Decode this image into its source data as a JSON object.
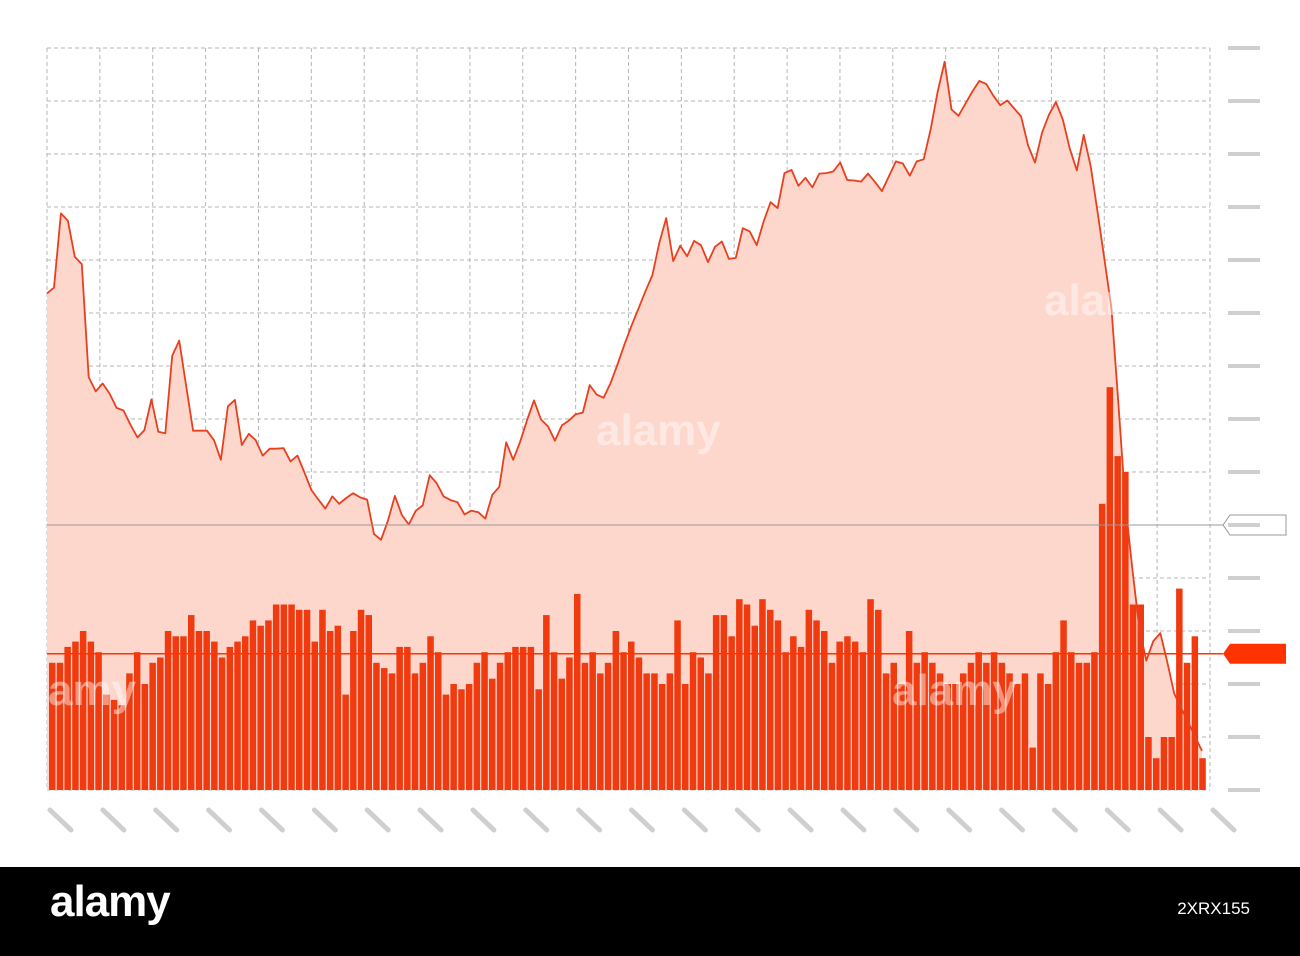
{
  "colors": {
    "line": "#e8401e",
    "fill": "#fdd6cc",
    "bars": "#f03a10",
    "grid": "#b5b5b5",
    "axis_ticks": "#cfcfcf",
    "marker_gray": "#999999",
    "marker_red": "#ff3300"
  },
  "chart_data": {
    "type": "area",
    "title": "",
    "xlabel": "",
    "ylabel": "",
    "grid": true,
    "y_ticks_count": 15,
    "x_ticks_count": 23,
    "ylim": [
      0,
      14
    ],
    "price": [
      9.37,
      9.48,
      10.88,
      10.74,
      10.06,
      9.92,
      7.79,
      7.52,
      7.67,
      7.48,
      7.21,
      7.16,
      6.89,
      6.65,
      6.79,
      7.37,
      6.76,
      6.73,
      8.19,
      8.48,
      7.62,
      6.78,
      6.78,
      6.78,
      6.6,
      6.23,
      7.24,
      7.36,
      6.51,
      6.72,
      6.6,
      6.31,
      6.44,
      6.44,
      6.45,
      6.2,
      6.31,
      5.99,
      5.66,
      5.48,
      5.31,
      5.54,
      5.4,
      5.51,
      5.6,
      5.52,
      5.48,
      4.83,
      4.72,
      5.08,
      5.55,
      5.19,
      5.01,
      5.27,
      5.37,
      5.94,
      5.79,
      5.54,
      5.47,
      5.43,
      5.2,
      5.27,
      5.24,
      5.12,
      5.57,
      5.72,
      6.56,
      6.23,
      6.57,
      6.98,
      7.35,
      6.99,
      6.86,
      6.59,
      6.88,
      6.97,
      7.09,
      7.12,
      7.64,
      7.46,
      7.4,
      7.68,
      8.03,
      8.41,
      8.76,
      9.08,
      9.41,
      9.71,
      10.32,
      10.79,
      9.98,
      10.27,
      10.07,
      10.36,
      10.28,
      9.96,
      10.25,
      10.35,
      10.02,
      10.04,
      10.6,
      10.54,
      10.28,
      10.73,
      11.09,
      10.98,
      11.64,
      11.7,
      11.4,
      11.55,
      11.37,
      11.63,
      11.64,
      11.67,
      11.84,
      11.51,
      11.5,
      11.48,
      11.63,
      11.47,
      11.3,
      11.58,
      11.86,
      11.82,
      11.59,
      11.86,
      11.9,
      12.46,
      13.17,
      13.74,
      12.84,
      12.72,
      12.95,
      13.18,
      13.38,
      13.32,
      13.1,
      12.92,
      13.01,
      12.86,
      12.71,
      12.16,
      11.84,
      12.4,
      12.74,
      12.98,
      12.65,
      12.1,
      11.69,
      12.36,
      11.77,
      10.9,
      9.99,
      9.08,
      7.26,
      5.37,
      4.16,
      3.04,
      2.44,
      2.81,
      2.96,
      2.42,
      1.82,
      1.55,
      1.28,
      1.01,
      0.74
    ],
    "volume": [
      2.4,
      2.4,
      2.7,
      2.8,
      3.0,
      2.8,
      2.6,
      1.8,
      1.7,
      1.6,
      2.2,
      2.6,
      2.0,
      2.4,
      2.5,
      3.0,
      2.9,
      2.9,
      3.3,
      3.0,
      3.0,
      2.8,
      2.5,
      2.7,
      2.8,
      2.9,
      3.2,
      3.1,
      3.2,
      3.5,
      3.5,
      3.5,
      3.4,
      3.4,
      2.8,
      3.4,
      3.0,
      3.1,
      1.8,
      3.0,
      3.4,
      3.3,
      2.4,
      2.3,
      2.2,
      2.7,
      2.7,
      2.2,
      2.4,
      2.9,
      2.6,
      1.8,
      2.0,
      1.9,
      2.0,
      2.4,
      2.6,
      2.1,
      2.4,
      2.6,
      2.7,
      2.7,
      2.7,
      1.9,
      3.3,
      2.6,
      2.1,
      2.5,
      3.7,
      2.4,
      2.6,
      2.2,
      2.4,
      3.0,
      2.6,
      2.8,
      2.5,
      2.2,
      2.2,
      2.0,
      2.2,
      3.2,
      2.0,
      2.6,
      2.5,
      2.2,
      3.3,
      3.3,
      2.9,
      3.6,
      3.5,
      3.1,
      3.6,
      3.4,
      3.2,
      2.6,
      2.9,
      2.7,
      3.4,
      3.2,
      3.0,
      2.4,
      2.8,
      2.9,
      2.8,
      2.6,
      3.6,
      3.4,
      2.2,
      2.4,
      2.0,
      3.0,
      2.4,
      2.6,
      2.4,
      2.2,
      2.0,
      2.0,
      2.2,
      2.4,
      2.6,
      2.4,
      2.6,
      2.4,
      2.2,
      2.0,
      2.2,
      0.8,
      2.2,
      2.0,
      2.6,
      3.2,
      2.6,
      2.4,
      2.4,
      2.6,
      5.4,
      7.6,
      6.3,
      6.0,
      3.5,
      3.5,
      1.0,
      0.6,
      1.0,
      1.0,
      3.8,
      2.4,
      2.9,
      0.6
    ],
    "reference_line_gray": 5.0,
    "reference_line_red": 2.57
  }
}
